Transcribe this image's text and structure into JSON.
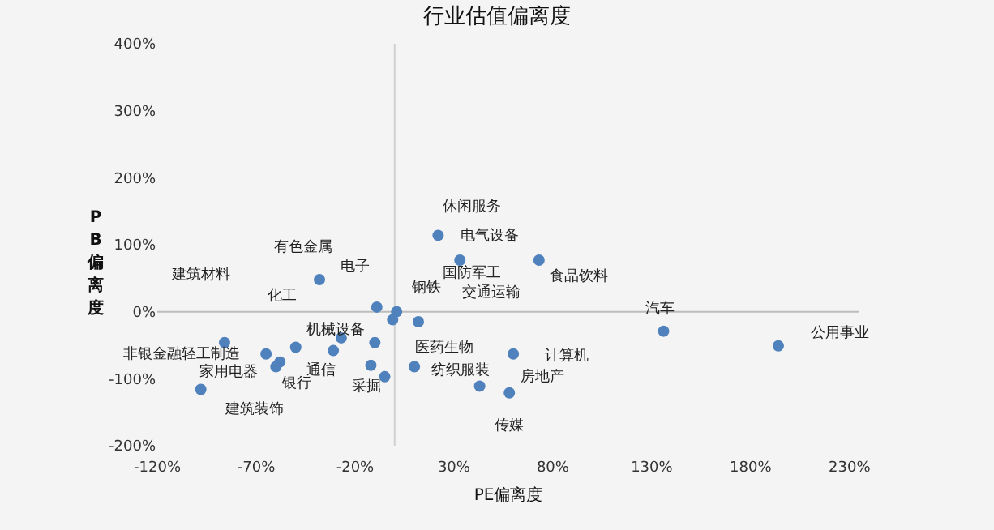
{
  "chart_data": {
    "type": "scatter",
    "title": "行业估值偏离度",
    "xlabel": "PE偏离度",
    "ylabel": "PB偏离度",
    "x": [
      -38,
      -9,
      1,
      -1,
      12,
      -27,
      -10,
      -86,
      -65,
      -50,
      -31,
      -58,
      -60,
      -12,
      -5,
      -98,
      10,
      22,
      33,
      73,
      60,
      43,
      58,
      136,
      194
    ],
    "series": [
      {
        "color": "#4f81bd",
        "values": [
          48,
          7,
          0,
          -12,
          -15,
          -39,
          -46,
          -46,
          -63,
          -53,
          -58,
          -75,
          -82,
          -80,
          -97,
          -116,
          -82,
          114,
          77,
          77,
          -63,
          -111,
          -121,
          -29,
          -51
        ]
      }
    ],
    "xlim": [
      -120,
      235
    ],
    "ylim": [
      -200,
      400
    ],
    "xticks": [
      {
        "value": -120,
        "label": "-120%"
      },
      {
        "value": -70,
        "label": "-70%"
      },
      {
        "value": -20,
        "label": "-20%"
      },
      {
        "value": 30,
        "label": "30%"
      },
      {
        "value": 80,
        "label": "80%"
      },
      {
        "value": 130,
        "label": "130%"
      },
      {
        "value": 180,
        "label": "180%"
      },
      {
        "value": 230,
        "label": "230%"
      }
    ],
    "yticks": [
      {
        "value": -200,
        "label": "-200%"
      },
      {
        "value": -100,
        "label": "-100%"
      },
      {
        "value": 0,
        "label": "0%"
      },
      {
        "value": 100,
        "label": "100%"
      },
      {
        "value": 200,
        "label": "200%"
      },
      {
        "value": 300,
        "label": "300%"
      },
      {
        "value": 400,
        "label": "400%"
      }
    ],
    "ref_lines": [
      {
        "axis": "x",
        "value": 0,
        "color": "#d0d0d0"
      },
      {
        "axis": "y",
        "value": 0,
        "color": "#bcbcbc"
      }
    ],
    "marker": "circle",
    "annotations": [
      "休闲服务",
      "电气设备",
      "有色金属",
      "电子",
      "国防军工",
      "食品饮料",
      "建筑材料",
      "化工",
      "钢铁",
      "交通运输",
      "汽车",
      "机械设备",
      "公用事业",
      "医药生物",
      "非银金融轻工制造",
      "计算机",
      "家用电器",
      "通信",
      "纺织服装",
      "房地产",
      "银行",
      "采掘",
      "建筑装饰",
      "传媒"
    ]
  }
}
